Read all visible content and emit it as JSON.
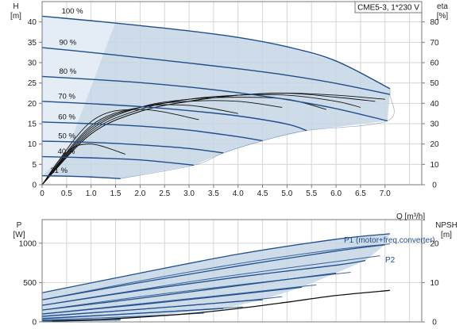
{
  "chart_data": [
    {
      "type": "line",
      "name": "head-efficiency",
      "model_label": "CME5-3, 1*230 V",
      "left_axis": {
        "label": "H",
        "unit": "[m]",
        "range": [
          0,
          45
        ],
        "ticks": [
          0,
          5,
          10,
          15,
          20,
          25,
          30,
          35,
          40
        ]
      },
      "right_axis": {
        "label": "eta",
        "unit": "[%]",
        "range": [
          0,
          90
        ],
        "ticks": [
          0,
          10,
          20,
          30,
          40,
          50,
          60,
          70,
          80
        ]
      },
      "x_axis": {
        "unit_label": "Q [m³/h]",
        "range": [
          0,
          7.75
        ],
        "ticks": [
          0,
          0.5,
          1.0,
          1.5,
          2.0,
          2.5,
          3.0,
          3.5,
          4.0,
          4.5,
          5.0,
          5.5,
          6.0,
          6.5,
          7.0
        ],
        "tick_labels": [
          "0",
          "0.5",
          "1.0",
          "1.5",
          "2.0",
          "2.5",
          "3.0",
          "3.5",
          "4.0",
          "4.5",
          "5.0",
          "5.5",
          "6.0",
          "6.5",
          "7.0"
        ]
      },
      "grid": true,
      "speed_labels": [
        "100 %",
        "90 %",
        "80 %",
        "70 %",
        "60 %",
        "50 %",
        "40 %",
        "21 %"
      ],
      "head_series": [
        {
          "speed_pct": 100,
          "x": [
            0,
            1,
            2,
            3,
            4,
            5,
            6,
            7.1
          ],
          "y": [
            41.4,
            40.3,
            39.1,
            37.8,
            36.2,
            33.9,
            30.4,
            23.6
          ]
        },
        {
          "speed_pct": 90,
          "x": [
            0,
            1,
            2,
            3,
            4,
            5,
            6,
            7.1
          ],
          "y": [
            33.7,
            32.5,
            31.2,
            29.9,
            28.5,
            26.9,
            24.9,
            22.2
          ]
        },
        {
          "speed_pct": 80,
          "x": [
            0,
            1,
            2,
            3,
            4,
            5,
            6,
            7.05
          ],
          "y": [
            26.6,
            25.9,
            25.1,
            24.0,
            22.6,
            20.9,
            18.7,
            15.7
          ]
        },
        {
          "speed_pct": 70,
          "x": [
            0,
            1,
            2,
            3,
            4,
            5,
            5.4
          ],
          "y": [
            20.5,
            19.9,
            19.2,
            18.2,
            16.9,
            14.9,
            13.3
          ]
        },
        {
          "speed_pct": 60,
          "x": [
            0,
            1,
            2,
            3,
            4,
            4.5
          ],
          "y": [
            15.4,
            15.0,
            14.4,
            13.4,
            11.8,
            10.8
          ]
        },
        {
          "speed_pct": 50,
          "x": [
            0,
            1,
            2,
            3,
            3.7
          ],
          "y": [
            10.7,
            10.4,
            9.8,
            8.9,
            7.8
          ]
        },
        {
          "speed_pct": 40,
          "x": [
            0,
            1,
            2,
            3.1
          ],
          "y": [
            6.9,
            6.6,
            6.1,
            4.8
          ]
        },
        {
          "speed_pct": 21,
          "x": [
            0,
            0.5,
            1.0,
            1.6
          ],
          "y": [
            2.2,
            2.1,
            1.9,
            1.5
          ]
        }
      ],
      "eta_series": [
        {
          "name": "eta 100%",
          "x": [
            0,
            1,
            2,
            3,
            4,
            5,
            6,
            7.0
          ],
          "y": [
            0,
            25,
            36,
            41,
            44,
            45,
            44,
            42
          ]
        },
        {
          "name": "eta 90%",
          "x": [
            0,
            1,
            2,
            3,
            4,
            5,
            6,
            6.8
          ],
          "y": [
            0,
            25,
            36,
            41,
            44,
            45,
            43,
            41
          ]
        },
        {
          "name": "eta 80%",
          "x": [
            0,
            1,
            2,
            3,
            4,
            5,
            6,
            6.5
          ],
          "y": [
            0,
            26,
            37,
            42,
            44,
            44,
            41,
            38
          ]
        },
        {
          "name": "eta 70%",
          "x": [
            0,
            1,
            2,
            3,
            4,
            5,
            5.8
          ],
          "y": [
            0,
            27,
            38,
            42,
            43,
            42,
            37
          ]
        },
        {
          "name": "eta 60%",
          "x": [
            0,
            1,
            2,
            3,
            4,
            4.9
          ],
          "y": [
            0,
            28,
            38,
            41,
            41,
            38
          ]
        },
        {
          "name": "eta 50%",
          "x": [
            0,
            1,
            2,
            3,
            4.0
          ],
          "y": [
            0,
            29,
            38,
            39,
            35
          ]
        },
        {
          "name": "eta 40%",
          "x": [
            0,
            1,
            2,
            3.2
          ],
          "y": [
            0,
            31,
            37,
            32
          ]
        },
        {
          "name": "eta 21%",
          "x": [
            0,
            0.5,
            1.0,
            1.7
          ],
          "y": [
            0,
            16,
            20,
            15
          ]
        }
      ]
    },
    {
      "type": "line",
      "name": "power-npsh",
      "left_axis": {
        "label": "P",
        "unit": "[W]",
        "range": [
          0,
          1300
        ],
        "ticks": [
          0,
          500,
          1000
        ]
      },
      "right_axis": {
        "label": "NPSH",
        "unit": "[m]",
        "range": [
          0,
          26
        ],
        "ticks": [
          0,
          10,
          20
        ]
      },
      "x_axis": {
        "range": [
          0,
          7.75
        ]
      },
      "grid": true,
      "legend": [
        "P1 (motor+freq.converter)",
        "P2"
      ],
      "p1_series": [
        {
          "speed_pct": 100,
          "x": [
            0,
            2,
            4,
            6,
            7.1
          ],
          "y": [
            370,
            620,
            860,
            1050,
            1120
          ]
        },
        {
          "speed_pct": 90,
          "x": [
            0,
            2,
            4,
            6,
            7.0
          ],
          "y": [
            280,
            500,
            710,
            900,
            980
          ]
        },
        {
          "speed_pct": 80,
          "x": [
            0,
            2,
            4,
            6,
            6.6
          ],
          "y": [
            210,
            400,
            570,
            720,
            780
          ]
        },
        {
          "speed_pct": 70,
          "x": [
            0,
            2,
            4,
            6.0
          ],
          "y": [
            150,
            300,
            460,
            620
          ]
        },
        {
          "speed_pct": 60,
          "x": [
            0,
            2,
            4,
            5.3
          ],
          "y": [
            100,
            220,
            350,
            440
          ]
        },
        {
          "speed_pct": 50,
          "x": [
            0,
            2,
            4,
            4.5
          ],
          "y": [
            70,
            160,
            260,
            280
          ]
        },
        {
          "speed_pct": 40,
          "x": [
            0,
            2,
            3.7
          ],
          "y": [
            40,
            110,
            170
          ]
        },
        {
          "speed_pct": 21,
          "x": [
            0,
            1.6
          ],
          "y": [
            15,
            35
          ]
        }
      ],
      "p2_series": [
        {
          "speed_pct": 100,
          "x": [
            0,
            2,
            4,
            6,
            7.1
          ],
          "y": [
            280,
            520,
            740,
            920,
            990
          ]
        },
        {
          "speed_pct": 90,
          "x": [
            0,
            2,
            4,
            6.9
          ],
          "y": [
            210,
            410,
            600,
            840
          ]
        },
        {
          "speed_pct": 80,
          "x": [
            0,
            2,
            4,
            6.3
          ],
          "y": [
            150,
            320,
            470,
            630
          ]
        },
        {
          "speed_pct": 70,
          "x": [
            0,
            2,
            4,
            5.6
          ],
          "y": [
            100,
            230,
            360,
            470
          ]
        },
        {
          "speed_pct": 60,
          "x": [
            0,
            2,
            4,
            4.9
          ],
          "y": [
            70,
            160,
            260,
            320
          ]
        },
        {
          "speed_pct": 50,
          "x": [
            0,
            2,
            4.1
          ],
          "y": [
            45,
            110,
            190
          ]
        },
        {
          "speed_pct": 40,
          "x": [
            0,
            2,
            3.3
          ],
          "y": [
            25,
            70,
            110
          ]
        },
        {
          "speed_pct": 21,
          "x": [
            0,
            1.6
          ],
          "y": [
            8,
            22
          ]
        }
      ],
      "npsh_series": [
        {
          "x": [
            0.2,
            1,
            2,
            3,
            4,
            5,
            6,
            7.1
          ],
          "y": [
            0.2,
            0.5,
            1.2,
            2.1,
            3.4,
            5.0,
            6.7,
            8.0
          ]
        }
      ]
    }
  ],
  "colors": {
    "curve": "#1f4e8c",
    "region": "#c5d6e6",
    "region_light": "#e4edf6",
    "eta": "#111111",
    "npsh": "#111111",
    "grid": "#d6d6d6",
    "axis": "#7a7a7a"
  }
}
